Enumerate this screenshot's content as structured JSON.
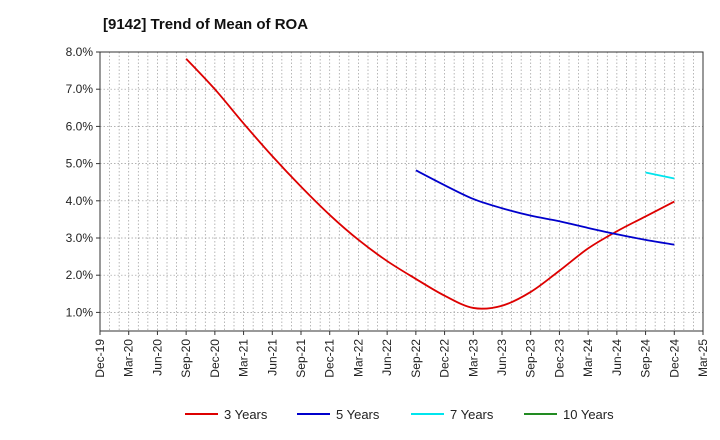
{
  "chart_data": {
    "type": "line",
    "title": "[9142]  Trend of Mean of ROA",
    "xlabel": "",
    "ylabel": "",
    "categories": [
      "Dec-19",
      "Mar-20",
      "Jun-20",
      "Sep-20",
      "Dec-20",
      "Mar-21",
      "Jun-21",
      "Sep-21",
      "Dec-21",
      "Mar-22",
      "Jun-22",
      "Sep-22",
      "Dec-22",
      "Mar-23",
      "Jun-23",
      "Sep-23",
      "Dec-23",
      "Mar-24",
      "Jun-24",
      "Sep-24",
      "Dec-24",
      "Mar-25"
    ],
    "y_ticks": [
      "1.0%",
      "2.0%",
      "3.0%",
      "4.0%",
      "5.0%",
      "6.0%",
      "7.0%",
      "8.0%"
    ],
    "ylim": [
      0.5,
      8.0
    ],
    "grid": true,
    "legend_position": "bottom",
    "series": [
      {
        "name": "3 Years",
        "color": "#dd0000",
        "values": [
          null,
          null,
          null,
          7.82,
          7.0,
          6.08,
          5.2,
          4.38,
          3.62,
          2.95,
          2.38,
          1.9,
          1.45,
          1.12,
          1.18,
          1.55,
          2.12,
          2.72,
          3.18,
          3.58,
          3.98,
          null
        ]
      },
      {
        "name": "5 Years",
        "color": "#0000cc",
        "values": [
          null,
          null,
          null,
          null,
          null,
          null,
          null,
          null,
          null,
          null,
          null,
          4.82,
          4.42,
          4.05,
          3.8,
          3.6,
          3.45,
          3.27,
          3.1,
          2.95,
          2.82,
          null
        ]
      },
      {
        "name": "7 Years",
        "color": "#00e5ee",
        "values": [
          null,
          null,
          null,
          null,
          null,
          null,
          null,
          null,
          null,
          null,
          null,
          null,
          null,
          null,
          null,
          null,
          null,
          null,
          null,
          4.76,
          4.6,
          null
        ]
      },
      {
        "name": "10 Years",
        "color": "#228b22",
        "values": [
          null,
          null,
          null,
          null,
          null,
          null,
          null,
          null,
          null,
          null,
          null,
          null,
          null,
          null,
          null,
          null,
          null,
          null,
          null,
          null,
          null,
          null
        ]
      }
    ]
  }
}
